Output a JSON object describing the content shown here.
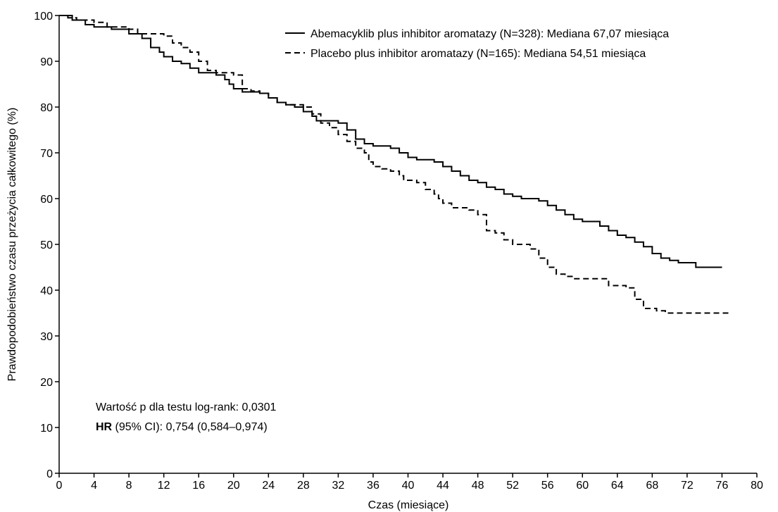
{
  "chart_data": {
    "type": "line",
    "step": true,
    "xlabel": "Czas (miesiące)",
    "ylabel": "Prawdopodobieństwo czasu przeżycia całkowitego (%)",
    "xlim": [
      0,
      80
    ],
    "xticks": [
      0,
      4,
      8,
      12,
      16,
      20,
      24,
      28,
      32,
      36,
      40,
      44,
      48,
      52,
      56,
      60,
      64,
      68,
      72,
      76,
      80
    ],
    "ylim": [
      0,
      100
    ],
    "yticks": [
      0,
      10,
      20,
      30,
      40,
      50,
      60,
      70,
      80,
      90,
      100
    ],
    "grid": false,
    "legend": "upper right",
    "series": [
      {
        "name": "Abemacyklib plus inhibitor aromatazy (N=328): Mediana 67,07 miesiąca",
        "color": "#000000",
        "dash": "solid",
        "x": [
          0,
          1.5,
          3,
          4,
          6,
          8,
          9.5,
          10.5,
          11.5,
          12,
          13,
          14,
          15,
          16,
          18,
          19,
          19.5,
          20,
          21,
          23,
          24,
          25,
          26,
          27,
          28,
          29,
          29.5,
          32,
          33,
          34,
          35,
          36,
          38,
          39,
          40,
          41,
          43,
          44,
          45,
          46,
          47,
          48,
          49,
          50,
          51,
          52,
          53,
          55,
          56,
          57,
          58,
          59,
          60,
          62,
          63,
          64,
          65,
          66,
          67,
          68,
          69,
          70,
          71,
          73,
          76
        ],
        "values": [
          100,
          99,
          98,
          97.5,
          97,
          96,
          95,
          93,
          92,
          91,
          90,
          89.5,
          88.5,
          87.5,
          87,
          86,
          85,
          84,
          83.3,
          83,
          82,
          81,
          80.5,
          80,
          79,
          78,
          77,
          76.5,
          75,
          73,
          72,
          71.5,
          71,
          70,
          69,
          68.5,
          68,
          67,
          66,
          65,
          64,
          63.5,
          62.5,
          62,
          61,
          60.5,
          60,
          59.5,
          58.5,
          57.5,
          56.5,
          55.5,
          55,
          54,
          53,
          52,
          51.5,
          50.5,
          49.5,
          48,
          47,
          46.5,
          46,
          45,
          45
        ]
      },
      {
        "name": "Placebo plus inhibitor aromatazy (N=165): Mediana 54,51 miesiąca",
        "color": "#000000",
        "dash": "dashed",
        "x": [
          0,
          1,
          2,
          4,
          5.5,
          8,
          9,
          12,
          13,
          14,
          15,
          16,
          17,
          18,
          20,
          21,
          22,
          23,
          24,
          25,
          26,
          28,
          29,
          30,
          31,
          32,
          33,
          34,
          35,
          35.5,
          36,
          37,
          38,
          39,
          39.5,
          41,
          42,
          43,
          43.5,
          44,
          45,
          47,
          48,
          49,
          50,
          51,
          52,
          54,
          55,
          56,
          57,
          58,
          59,
          63,
          65,
          66,
          67,
          68.5,
          69.5,
          77
        ],
        "values": [
          100,
          99.5,
          99,
          98.5,
          97.5,
          97,
          96,
          95.5,
          94,
          93,
          92,
          90,
          88,
          87.5,
          87,
          84,
          83.5,
          83,
          82,
          81,
          80.5,
          80,
          78.5,
          76.5,
          75.5,
          74,
          72.5,
          71,
          70,
          68,
          67,
          66.5,
          66,
          65,
          64,
          63.5,
          62,
          61,
          60,
          59,
          58,
          57.5,
          56.5,
          53,
          52.5,
          51,
          50,
          49,
          47,
          45,
          43.5,
          43,
          42.5,
          41,
          40.5,
          38,
          36,
          35.5,
          35,
          35
        ]
      }
    ],
    "annotations": [
      {
        "text": "Wartość p dla testu log-rank: 0,0301"
      },
      {
        "bold": "HR",
        "text": " (95% CI):  0,754 (0,584–0,974)"
      }
    ]
  }
}
